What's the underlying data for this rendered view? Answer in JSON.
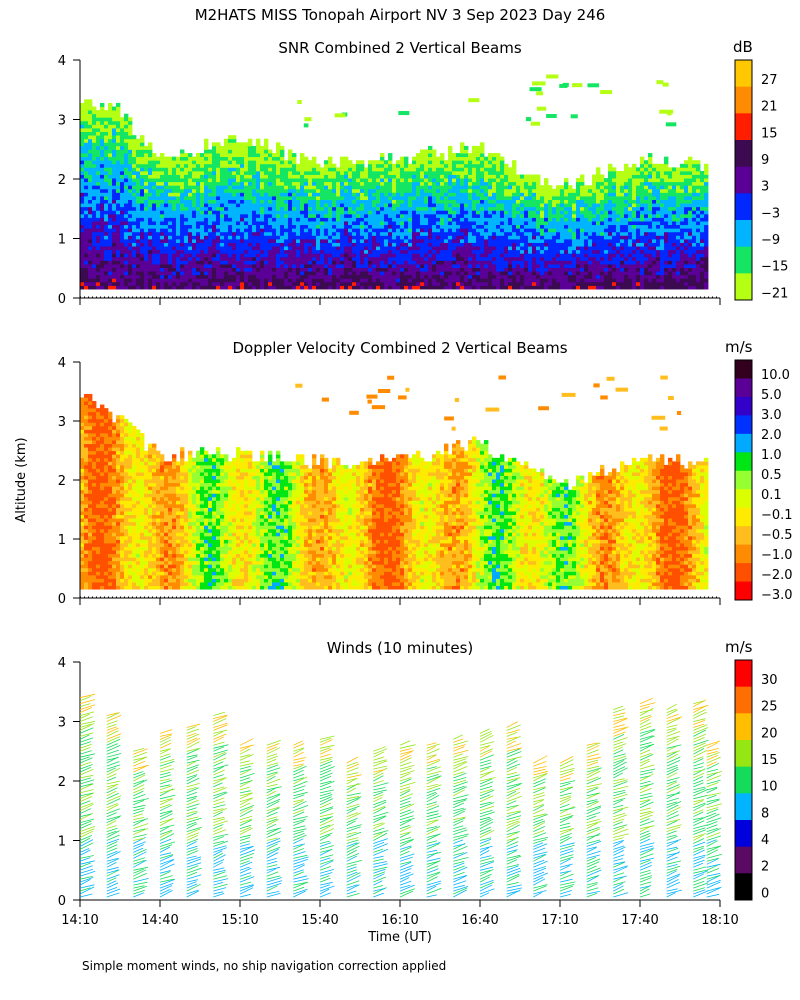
{
  "figure": {
    "suptitle": "M2HATS MISS Tonopah Airport NV   3 Sep 2023 Day 246",
    "xlabel": "Time (UT)",
    "ylabel": "Altitude (km)",
    "footnote": "Simple moment winds, no ship navigation correction applied"
  },
  "chart_data": [
    {
      "type": "heatmap",
      "title": "SNR Combined 2 Vertical Beams",
      "ylabel": "Altitude (km)",
      "xlim": [
        "14:10",
        "18:10"
      ],
      "ylim": [
        0,
        4
      ],
      "yticks": [
        0,
        1,
        2,
        3,
        4
      ],
      "colorbar": {
        "unit": "dB",
        "tick_labels": [
          "27",
          "21",
          "15",
          "9",
          "3",
          "−3",
          "−9",
          "−15",
          "−21"
        ],
        "colors": [
          "#ffc800",
          "#ff8c00",
          "#ff1e00",
          "#3c0a50",
          "#5a0096",
          "#0028ff",
          "#00b4ff",
          "#14e664",
          "#b4ff14"
        ]
      },
      "approx_echo_top_km": [
        {
          "time": "14:10",
          "top": 3.3
        },
        {
          "time": "14:25",
          "top": 3.1
        },
        {
          "time": "14:40",
          "top": 2.3
        },
        {
          "time": "15:10",
          "top": 2.7
        },
        {
          "time": "15:40",
          "top": 2.2
        },
        {
          "time": "16:10",
          "top": 2.3
        },
        {
          "time": "16:40",
          "top": 2.5
        },
        {
          "time": "17:10",
          "top": 1.8
        },
        {
          "time": "17:40",
          "top": 2.3
        },
        {
          "time": "18:05",
          "top": 2.2
        }
      ]
    },
    {
      "type": "heatmap",
      "title": "Doppler Velocity Combined 2 Vertical Beams",
      "ylabel": "Altitude (km)",
      "xlim": [
        "14:10",
        "18:10"
      ],
      "ylim": [
        0,
        4
      ],
      "yticks": [
        0,
        1,
        2,
        3,
        4
      ],
      "colorbar": {
        "unit": "m/s",
        "tick_labels": [
          "10.0",
          "5.0",
          "3.0",
          "2.0",
          "1.0",
          "0.5",
          "0.1",
          "−0.1",
          "−0.5",
          "−1.0",
          "−2.0",
          "−3.0"
        ],
        "colors": [
          "#32001e",
          "#5a0096",
          "#3200c8",
          "#0032ff",
          "#00aaff",
          "#00e614",
          "#96ff32",
          "#dcff00",
          "#ffeb00",
          "#ffbe1e",
          "#ff8c00",
          "#ff5000",
          "#ff0000"
        ]
      },
      "approx_echo_top_km": [
        {
          "time": "14:10",
          "top": 3.4
        },
        {
          "time": "14:25",
          "top": 3.0
        },
        {
          "time": "14:40",
          "top": 2.4
        },
        {
          "time": "15:10",
          "top": 2.4
        },
        {
          "time": "15:40",
          "top": 2.3
        },
        {
          "time": "16:10",
          "top": 2.3
        },
        {
          "time": "16:40",
          "top": 2.6
        },
        {
          "time": "17:10",
          "top": 1.9
        },
        {
          "time": "17:40",
          "top": 2.3
        },
        {
          "time": "18:05",
          "top": 2.3
        }
      ]
    },
    {
      "type": "scatter",
      "title": "Winds (10 minutes)",
      "ylabel": "Altitude (km)",
      "xlabel": "Time (UT)",
      "xlim": [
        "14:10",
        "18:10"
      ],
      "ylim": [
        0,
        4
      ],
      "yticks": [
        0,
        1,
        2,
        3,
        4
      ],
      "xtick_labels": [
        "14:10",
        "14:40",
        "15:10",
        "15:40",
        "16:10",
        "16:40",
        "17:10",
        "17:40",
        "18:10"
      ],
      "colorbar": {
        "unit": "m/s",
        "tick_labels": [
          "30",
          "25",
          "20",
          "15",
          "10",
          "8",
          "4",
          "2",
          "0"
        ],
        "colors": [
          "#ff0000",
          "#ff6e00",
          "#ffbe00",
          "#96e614",
          "#14dc5a",
          "#00b4ff",
          "#0000dc",
          "#5a0a64",
          "#000000"
        ]
      },
      "profiles": [
        {
          "time": "14:10",
          "top_km": 3.4
        },
        {
          "time": "14:20",
          "top_km": 3.1
        },
        {
          "time": "14:30",
          "top_km": 2.5
        },
        {
          "time": "14:40",
          "top_km": 2.8
        },
        {
          "time": "14:50",
          "top_km": 2.9
        },
        {
          "time": "15:00",
          "top_km": 3.1
        },
        {
          "time": "15:10",
          "top_km": 2.6
        },
        {
          "time": "15:20",
          "top_km": 2.6
        },
        {
          "time": "15:30",
          "top_km": 2.6
        },
        {
          "time": "15:40",
          "top_km": 2.7
        },
        {
          "time": "15:50",
          "top_km": 2.3
        },
        {
          "time": "16:00",
          "top_km": 2.5
        },
        {
          "time": "16:10",
          "top_km": 2.6
        },
        {
          "time": "16:20",
          "top_km": 2.6
        },
        {
          "time": "16:30",
          "top_km": 2.7
        },
        {
          "time": "16:40",
          "top_km": 2.8
        },
        {
          "time": "16:50",
          "top_km": 2.9
        },
        {
          "time": "17:00",
          "top_km": 2.3
        },
        {
          "time": "17:10",
          "top_km": 2.3
        },
        {
          "time": "17:20",
          "top_km": 2.6
        },
        {
          "time": "17:30",
          "top_km": 3.2
        },
        {
          "time": "17:40",
          "top_km": 3.3
        },
        {
          "time": "17:50",
          "top_km": 3.2
        },
        {
          "time": "18:00",
          "top_km": 3.3
        },
        {
          "time": "18:05",
          "top_km": 2.6
        }
      ]
    }
  ]
}
